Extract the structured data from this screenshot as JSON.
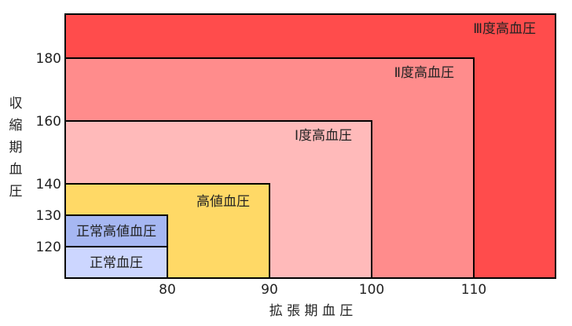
{
  "chart_data": {
    "type": "area",
    "xlabel": "拡 張 期 血 圧",
    "ylabel": "収縮期血圧",
    "xlim": [
      70,
      118
    ],
    "ylim": [
      110,
      194
    ],
    "x_ticks": [
      80,
      90,
      100,
      110
    ],
    "y_ticks": [
      120,
      130,
      140,
      160,
      180
    ],
    "zones": [
      {
        "name": "Ⅲ度高血圧",
        "x_max": 118,
        "y_max": 194,
        "color": "#ff4c4c"
      },
      {
        "name": "Ⅱ度高血圧",
        "x_max": 110,
        "y_max": 180,
        "color": "#ff8c8c"
      },
      {
        "name": "Ⅰ度高血圧",
        "x_max": 100,
        "y_max": 160,
        "color": "#ffbaba"
      },
      {
        "name": "高値血圧",
        "x_max": 90,
        "y_max": 140,
        "color": "#ffd966"
      },
      {
        "name": "正常高値血圧",
        "x_max": 80,
        "y_max": 130,
        "color": "#a6b7f2"
      },
      {
        "name": "正常血圧",
        "x_max": 80,
        "y_max": 120,
        "color": "#ccd6ff"
      }
    ]
  }
}
